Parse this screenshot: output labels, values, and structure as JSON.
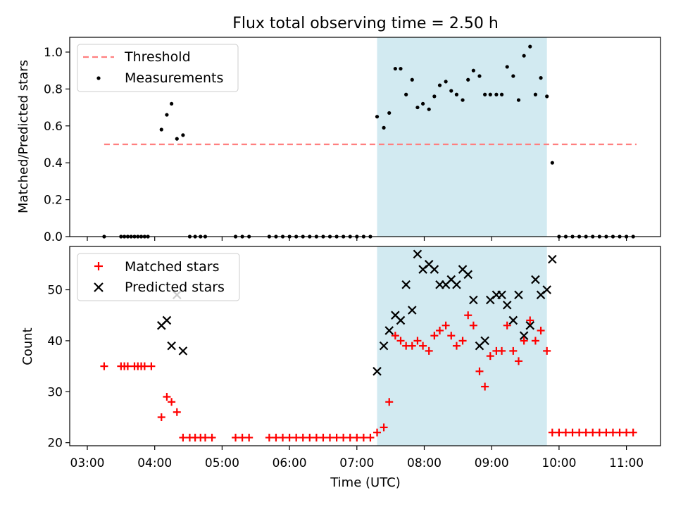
{
  "title": "Flux total observing time = 2.50 h",
  "threshold_color": "#ff7f7f",
  "shade_color": "#add8e6",
  "colors": {
    "measurements": "#000000",
    "matched": "#ff0000",
    "predicted": "#000000"
  },
  "x_ticks": [
    "03:00",
    "04:00",
    "05:00",
    "06:00",
    "07:00",
    "08:00",
    "09:00",
    "10:00",
    "11:00"
  ],
  "chart_data": [
    {
      "type": "scatter",
      "ylabel": "Matched/Predicted stars",
      "xlabel": "",
      "ylim": [
        0,
        1.08
      ],
      "y_ticks": [
        "0.0",
        "0.2",
        "0.4",
        "0.6",
        "0.8",
        "1.0"
      ],
      "legend": [
        "Threshold",
        "Measurements"
      ],
      "legend_position": "upper-left",
      "threshold": {
        "value": 0.5,
        "x_start_hours": 3.25,
        "x_end_hours": 11.15
      },
      "shaded_span_hours": [
        7.3,
        9.82
      ],
      "measurements": [
        [
          3.25,
          0
        ],
        [
          3.5,
          0
        ],
        [
          3.55,
          0
        ],
        [
          3.6,
          0
        ],
        [
          3.65,
          0
        ],
        [
          3.7,
          0
        ],
        [
          3.75,
          0
        ],
        [
          3.8,
          0
        ],
        [
          3.85,
          0
        ],
        [
          3.9,
          0
        ],
        [
          4.1,
          0.58
        ],
        [
          4.18,
          0.66
        ],
        [
          4.25,
          0.72
        ],
        [
          4.33,
          0.53
        ],
        [
          4.42,
          0.55
        ],
        [
          4.52,
          0
        ],
        [
          4.6,
          0
        ],
        [
          4.68,
          0
        ],
        [
          4.75,
          0
        ],
        [
          5.2,
          0
        ],
        [
          5.3,
          0
        ],
        [
          5.4,
          0
        ],
        [
          5.7,
          0
        ],
        [
          5.8,
          0
        ],
        [
          5.9,
          0
        ],
        [
          6.0,
          0
        ],
        [
          6.1,
          0
        ],
        [
          6.2,
          0
        ],
        [
          6.3,
          0
        ],
        [
          6.4,
          0
        ],
        [
          6.5,
          0
        ],
        [
          6.6,
          0
        ],
        [
          6.7,
          0
        ],
        [
          6.8,
          0
        ],
        [
          6.9,
          0
        ],
        [
          7.0,
          0
        ],
        [
          7.1,
          0
        ],
        [
          7.2,
          0
        ],
        [
          7.3,
          0.65
        ],
        [
          7.4,
          0.59
        ],
        [
          7.48,
          0.67
        ],
        [
          7.57,
          0.91
        ],
        [
          7.65,
          0.91
        ],
        [
          7.73,
          0.77
        ],
        [
          7.82,
          0.85
        ],
        [
          7.9,
          0.7
        ],
        [
          7.98,
          0.72
        ],
        [
          8.07,
          0.69
        ],
        [
          8.15,
          0.76
        ],
        [
          8.23,
          0.82
        ],
        [
          8.32,
          0.84
        ],
        [
          8.4,
          0.79
        ],
        [
          8.48,
          0.77
        ],
        [
          8.57,
          0.74
        ],
        [
          8.65,
          0.85
        ],
        [
          8.73,
          0.9
        ],
        [
          8.82,
          0.87
        ],
        [
          8.9,
          0.77
        ],
        [
          8.98,
          0.77
        ],
        [
          9.07,
          0.77
        ],
        [
          9.15,
          0.77
        ],
        [
          9.23,
          0.92
        ],
        [
          9.32,
          0.87
        ],
        [
          9.4,
          0.74
        ],
        [
          9.48,
          0.98
        ],
        [
          9.57,
          1.03
        ],
        [
          9.65,
          0.77
        ],
        [
          9.73,
          0.86
        ],
        [
          9.82,
          0.76
        ],
        [
          9.9,
          0.4
        ],
        [
          10.0,
          0
        ],
        [
          10.1,
          0
        ],
        [
          10.2,
          0
        ],
        [
          10.3,
          0
        ],
        [
          10.4,
          0
        ],
        [
          10.5,
          0
        ],
        [
          10.6,
          0
        ],
        [
          10.7,
          0
        ],
        [
          10.8,
          0
        ],
        [
          10.9,
          0
        ],
        [
          11.0,
          0
        ],
        [
          11.1,
          0
        ]
      ]
    },
    {
      "type": "scatter",
      "ylabel": "Count",
      "xlabel": "Time (UTC)",
      "ylim": [
        19.4,
        58.5
      ],
      "y_ticks": [
        "20",
        "30",
        "40",
        "50"
      ],
      "legend": [
        "Matched stars",
        "Predicted stars"
      ],
      "legend_position": "upper-left",
      "shaded_span_hours": [
        7.3,
        9.82
      ],
      "matched": [
        [
          3.25,
          35
        ],
        [
          3.5,
          35
        ],
        [
          3.55,
          35
        ],
        [
          3.6,
          35
        ],
        [
          3.7,
          35
        ],
        [
          3.75,
          35
        ],
        [
          3.8,
          35
        ],
        [
          3.85,
          35
        ],
        [
          3.95,
          35
        ],
        [
          4.1,
          25
        ],
        [
          4.18,
          29
        ],
        [
          4.25,
          28
        ],
        [
          4.33,
          26
        ],
        [
          4.42,
          21
        ],
        [
          4.52,
          21
        ],
        [
          4.6,
          21
        ],
        [
          4.68,
          21
        ],
        [
          4.75,
          21
        ],
        [
          4.85,
          21
        ],
        [
          5.2,
          21
        ],
        [
          5.3,
          21
        ],
        [
          5.4,
          21
        ],
        [
          5.7,
          21
        ],
        [
          5.8,
          21
        ],
        [
          5.9,
          21
        ],
        [
          6.0,
          21
        ],
        [
          6.1,
          21
        ],
        [
          6.2,
          21
        ],
        [
          6.3,
          21
        ],
        [
          6.4,
          21
        ],
        [
          6.5,
          21
        ],
        [
          6.6,
          21
        ],
        [
          6.7,
          21
        ],
        [
          6.8,
          21
        ],
        [
          6.9,
          21
        ],
        [
          7.0,
          21
        ],
        [
          7.1,
          21
        ],
        [
          7.2,
          21
        ],
        [
          7.3,
          22
        ],
        [
          7.4,
          23
        ],
        [
          7.48,
          28
        ],
        [
          7.57,
          41
        ],
        [
          7.65,
          40
        ],
        [
          7.73,
          39
        ],
        [
          7.82,
          39
        ],
        [
          7.9,
          40
        ],
        [
          7.98,
          39
        ],
        [
          8.07,
          38
        ],
        [
          8.15,
          41
        ],
        [
          8.23,
          42
        ],
        [
          8.32,
          43
        ],
        [
          8.4,
          41
        ],
        [
          8.48,
          39
        ],
        [
          8.57,
          40
        ],
        [
          8.65,
          45
        ],
        [
          8.73,
          43
        ],
        [
          8.82,
          34
        ],
        [
          8.9,
          31
        ],
        [
          8.98,
          37
        ],
        [
          9.07,
          38
        ],
        [
          9.15,
          38
        ],
        [
          9.23,
          43
        ],
        [
          9.32,
          38
        ],
        [
          9.4,
          36
        ],
        [
          9.48,
          40
        ],
        [
          9.57,
          44
        ],
        [
          9.65,
          40
        ],
        [
          9.73,
          42
        ],
        [
          9.82,
          38
        ],
        [
          9.9,
          22
        ],
        [
          10.0,
          22
        ],
        [
          10.1,
          22
        ],
        [
          10.2,
          22
        ],
        [
          10.3,
          22
        ],
        [
          10.4,
          22
        ],
        [
          10.5,
          22
        ],
        [
          10.6,
          22
        ],
        [
          10.7,
          22
        ],
        [
          10.8,
          22
        ],
        [
          10.9,
          22
        ],
        [
          11.0,
          22
        ],
        [
          11.1,
          22
        ]
      ],
      "predicted": [
        [
          4.1,
          43
        ],
        [
          4.18,
          44
        ],
        [
          4.25,
          39
        ],
        [
          4.33,
          49
        ],
        [
          4.42,
          38
        ],
        [
          7.3,
          34
        ],
        [
          7.4,
          39
        ],
        [
          7.48,
          42
        ],
        [
          7.57,
          45
        ],
        [
          7.65,
          44
        ],
        [
          7.73,
          51
        ],
        [
          7.82,
          46
        ],
        [
          7.9,
          57
        ],
        [
          7.98,
          54
        ],
        [
          8.07,
          55
        ],
        [
          8.15,
          54
        ],
        [
          8.23,
          51
        ],
        [
          8.32,
          51
        ],
        [
          8.4,
          52
        ],
        [
          8.48,
          51
        ],
        [
          8.57,
          54
        ],
        [
          8.65,
          53
        ],
        [
          8.73,
          48
        ],
        [
          8.82,
          39
        ],
        [
          8.9,
          40
        ],
        [
          8.98,
          48
        ],
        [
          9.07,
          49
        ],
        [
          9.15,
          49
        ],
        [
          9.23,
          47
        ],
        [
          9.32,
          44
        ],
        [
          9.4,
          49
        ],
        [
          9.48,
          41
        ],
        [
          9.57,
          43
        ],
        [
          9.65,
          52
        ],
        [
          9.73,
          49
        ],
        [
          9.82,
          50
        ],
        [
          9.9,
          56
        ]
      ]
    }
  ]
}
